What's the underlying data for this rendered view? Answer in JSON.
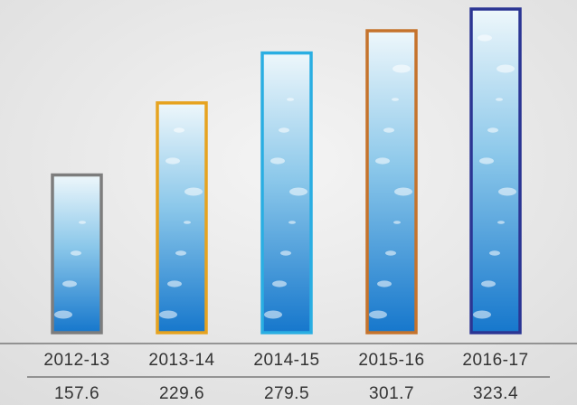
{
  "chart_data": {
    "type": "bar",
    "categories": [
      "2012-13",
      "2013-14",
      "2014-15",
      "2015-16",
      "2016-17"
    ],
    "values": [
      157.6,
      229.6,
      279.5,
      301.7,
      323.4
    ],
    "colors": [
      "#7d7d7d",
      "#e6a320",
      "#2aaee2",
      "#c5732c",
      "#2b3593"
    ]
  }
}
